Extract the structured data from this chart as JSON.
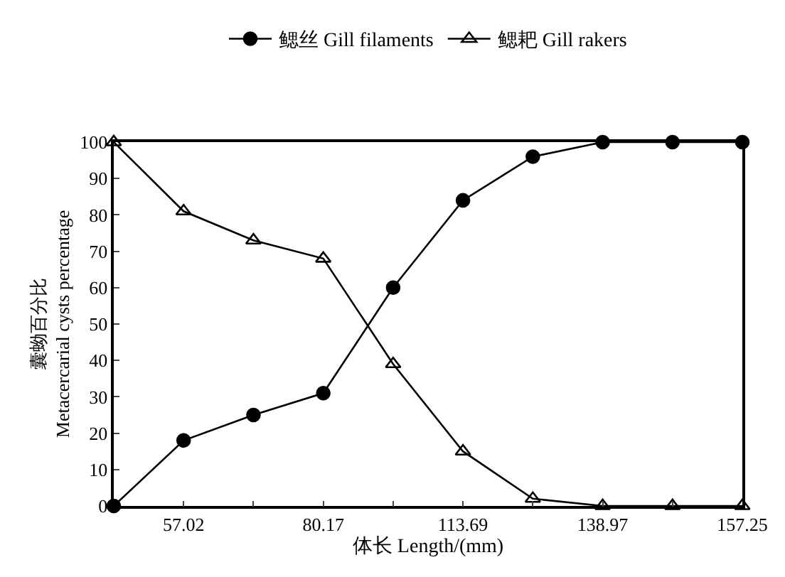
{
  "chart_data": {
    "type": "line",
    "xlabel": "体长 Length/(mm)",
    "ylabel": "囊蚴百分比\nMetacercarial cysts percentage",
    "categories": [
      null,
      "57.02",
      null,
      "80.17",
      null,
      "113.69",
      null,
      "138.97",
      null,
      "157.25"
    ],
    "series": [
      {
        "name": "鳃丝 Gill filaments",
        "color": "#000000",
        "marker": "circle",
        "values": [
          0,
          18,
          25,
          31,
          60,
          84,
          96,
          100,
          100,
          100
        ]
      },
      {
        "name": "鳃耙 Gill rakers",
        "color": "#000000",
        "marker": "triangle-open",
        "values": [
          100,
          81,
          73,
          68,
          39,
          15,
          2,
          0,
          0,
          0
        ]
      }
    ],
    "ylim": [
      0,
      100
    ],
    "yticks": [
      0,
      10,
      20,
      30,
      40,
      50,
      60,
      70,
      80,
      90,
      100
    ],
    "legend": "top",
    "line_style": "solid"
  }
}
